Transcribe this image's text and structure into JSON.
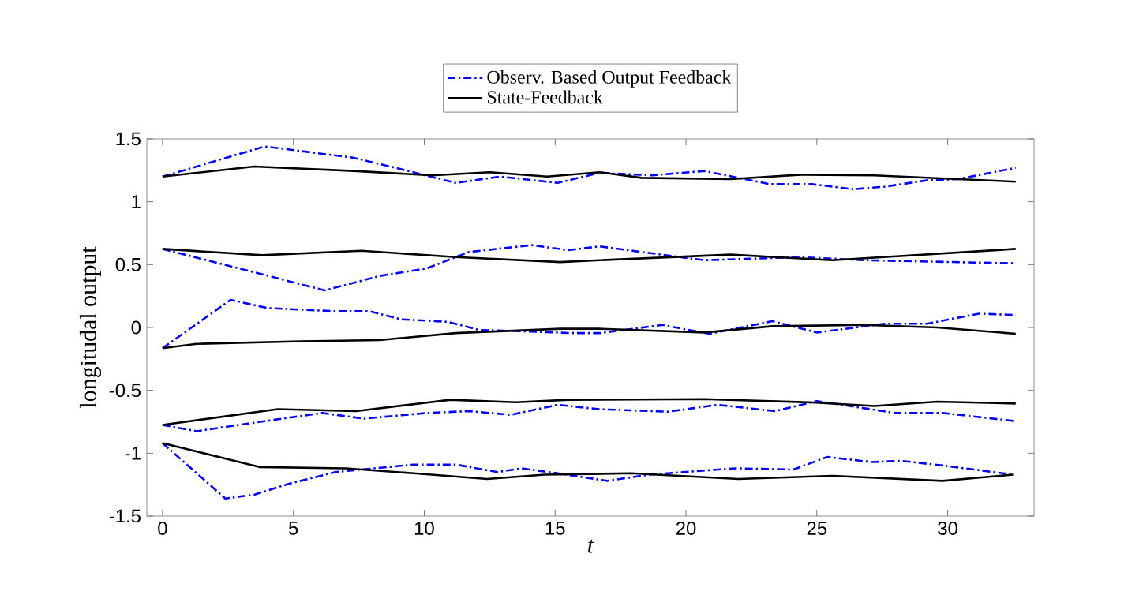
{
  "chart_data": {
    "type": "line",
    "xlabel": "t",
    "ylabel": "longitudal output",
    "xlim": [
      -0.6,
      33.3
    ],
    "ylim": [
      -1.5,
      1.5
    ],
    "xticks": [
      0,
      5,
      10,
      15,
      20,
      25,
      30
    ],
    "yticks": [
      -1.5,
      -1,
      -0.5,
      0,
      0.5,
      1,
      1.5
    ],
    "grid": false,
    "legend": "top",
    "marker": "none",
    "series": [
      {
        "name": "Observ. Based Output Feedback",
        "color": "#0000ff",
        "line_style": "dashdot",
        "x": [
          0,
          3.9,
          7.3,
          8.9,
          11.2,
          12.9,
          15.1,
          16.7,
          18.7,
          20.7,
          23.2,
          24.8,
          26.4,
          27.6,
          29.2,
          30.4,
          32.6
        ],
        "values": [
          1.2,
          1.44,
          1.35,
          1.27,
          1.15,
          1.2,
          1.15,
          1.23,
          1.21,
          1.245,
          1.14,
          1.14,
          1.1,
          1.12,
          1.17,
          1.18,
          1.27
        ]
      },
      {
        "name": "State-Feedback",
        "color": "#000000",
        "line_style": "solid",
        "x": [
          0,
          3.5,
          7.3,
          10.3,
          12.5,
          14.7,
          16.7,
          18.3,
          21.7,
          24.4,
          27.2,
          30.4,
          32.6
        ],
        "values": [
          1.2,
          1.28,
          1.245,
          1.21,
          1.235,
          1.2,
          1.235,
          1.19,
          1.18,
          1.215,
          1.21,
          1.18,
          1.16
        ]
      },
      {
        "color": "#0000ff",
        "line_style": "dashdot",
        "x": [
          0,
          3.3,
          6.2,
          8.3,
          10.1,
          11.7,
          14.1,
          15.5,
          16.7,
          18.7,
          20.7,
          24.4,
          26.8,
          32.6
        ],
        "values": [
          0.625,
          0.45,
          0.295,
          0.41,
          0.47,
          0.6,
          0.655,
          0.615,
          0.645,
          0.59,
          0.535,
          0.56,
          0.535,
          0.51
        ]
      },
      {
        "color": "#000000",
        "line_style": "solid",
        "x": [
          0,
          3.8,
          7.6,
          11.2,
          15.2,
          16.7,
          21.7,
          25.6,
          32.6
        ],
        "values": [
          0.625,
          0.575,
          0.61,
          0.56,
          0.52,
          0.535,
          0.58,
          0.535,
          0.625
        ]
      },
      {
        "color": "#0000ff",
        "line_style": "dashdot",
        "x": [
          0,
          2.6,
          4.0,
          6.5,
          7.9,
          9.1,
          10.9,
          12.1,
          13.7,
          15.7,
          16.7,
          19.1,
          20.9,
          23.3,
          25.0,
          27.6,
          29.2,
          31.2,
          32.6
        ],
        "values": [
          -0.165,
          0.22,
          0.155,
          0.13,
          0.13,
          0.065,
          0.045,
          -0.02,
          -0.03,
          -0.045,
          -0.045,
          0.02,
          -0.05,
          0.05,
          -0.04,
          0.03,
          0.03,
          0.11,
          0.1
        ]
      },
      {
        "color": "#000000",
        "line_style": "solid",
        "x": [
          0,
          1.3,
          5.3,
          8.3,
          11.2,
          15.2,
          16.7,
          20.7,
          23.3,
          26.8,
          29.6,
          32.6
        ],
        "values": [
          -0.165,
          -0.13,
          -0.11,
          -0.1,
          -0.045,
          -0.01,
          -0.01,
          -0.04,
          0.01,
          0.02,
          0.0,
          -0.05
        ]
      },
      {
        "color": "#0000ff",
        "line_style": "dashdot",
        "x": [
          0,
          1.3,
          3.9,
          6.1,
          7.7,
          10.1,
          11.7,
          13.3,
          15.1,
          16.7,
          19.3,
          21.2,
          23.4,
          25.0,
          28.0,
          29.8,
          32.6
        ],
        "values": [
          -0.775,
          -0.825,
          -0.745,
          -0.68,
          -0.725,
          -0.68,
          -0.665,
          -0.695,
          -0.615,
          -0.65,
          -0.67,
          -0.615,
          -0.665,
          -0.585,
          -0.68,
          -0.68,
          -0.745
        ]
      },
      {
        "color": "#000000",
        "line_style": "solid",
        "x": [
          0,
          4.4,
          7.4,
          11.0,
          13.5,
          15.5,
          20.7,
          24.7,
          27.2,
          29.6,
          32.6
        ],
        "values": [
          -0.775,
          -0.65,
          -0.665,
          -0.575,
          -0.595,
          -0.575,
          -0.57,
          -0.595,
          -0.625,
          -0.59,
          -0.605
        ]
      },
      {
        "color": "#0000ff",
        "line_style": "dashdot",
        "x": [
          0,
          2.4,
          3.5,
          4.8,
          6.6,
          9.6,
          11.2,
          12.8,
          13.7,
          15.1,
          17.0,
          18.6,
          21.9,
          24.1,
          25.4,
          27.1,
          28.2,
          29.9,
          32.5
        ],
        "values": [
          -0.92,
          -1.36,
          -1.33,
          -1.245,
          -1.15,
          -1.09,
          -1.09,
          -1.15,
          -1.12,
          -1.16,
          -1.22,
          -1.17,
          -1.12,
          -1.13,
          -1.03,
          -1.07,
          -1.06,
          -1.1,
          -1.17
        ]
      },
      {
        "color": "#000000",
        "line_style": "solid",
        "x": [
          0,
          3.7,
          7.0,
          9.6,
          12.4,
          14.6,
          17.9,
          22.0,
          25.6,
          29.8,
          32.5
        ],
        "values": [
          -0.92,
          -1.11,
          -1.12,
          -1.16,
          -1.205,
          -1.17,
          -1.16,
          -1.205,
          -1.18,
          -1.22,
          -1.17
        ]
      }
    ]
  }
}
